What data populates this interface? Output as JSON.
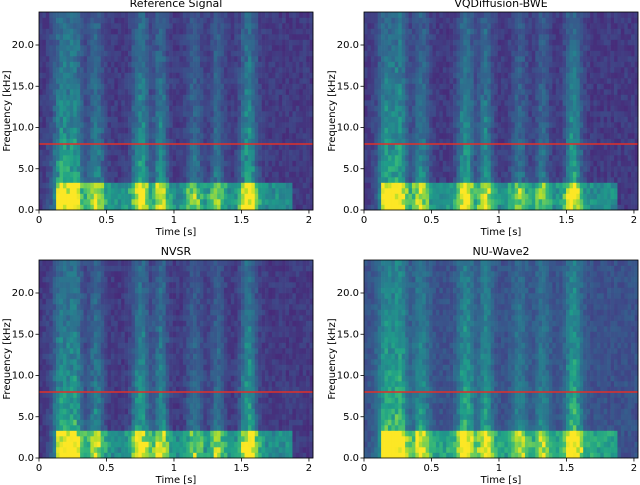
{
  "chart_data": [
    {
      "type": "spectrogram",
      "title": "Reference Signal",
      "xlabel": "Time [s]",
      "ylabel": "Frequency [kHz]",
      "xlim": [
        0,
        2.03
      ],
      "xticks": [
        0,
        0.5,
        1,
        1.5,
        2
      ],
      "ylim": [
        0,
        24
      ],
      "yticks": [
        {
          "value": 0,
          "label": "0.0"
        },
        {
          "value": 5,
          "label": "5.0"
        },
        {
          "value": 10,
          "label": "10.0"
        },
        {
          "value": 15,
          "label": "15.0"
        },
        {
          "value": 20,
          "label": "20.0"
        }
      ],
      "hline": 8,
      "hline_color": "#e0302a"
    },
    {
      "type": "spectrogram",
      "title": "VQDiffusion-BWE",
      "xlabel": "Time [s]",
      "ylabel": "Frequency [kHz]",
      "xlim": [
        0,
        2.03
      ],
      "xticks": [
        0,
        0.5,
        1,
        1.5,
        2
      ],
      "ylim": [
        0,
        24
      ],
      "yticks": [
        {
          "value": 0,
          "label": "0.0"
        },
        {
          "value": 5,
          "label": "5.0"
        },
        {
          "value": 10,
          "label": "10.0"
        },
        {
          "value": 15,
          "label": "15.0"
        },
        {
          "value": 20,
          "label": "20.0"
        }
      ],
      "hline": 8,
      "hline_color": "#e0302a"
    },
    {
      "type": "spectrogram",
      "title": "NVSR",
      "xlabel": "Time [s]",
      "ylabel": "Frequency [kHz]",
      "xlim": [
        0,
        2.03
      ],
      "xticks": [
        0,
        0.5,
        1,
        1.5,
        2
      ],
      "ylim": [
        0,
        24
      ],
      "yticks": [
        {
          "value": 0,
          "label": "0.0"
        },
        {
          "value": 5,
          "label": "5.0"
        },
        {
          "value": 10,
          "label": "10.0"
        },
        {
          "value": 15,
          "label": "15.0"
        },
        {
          "value": 20,
          "label": "20.0"
        }
      ],
      "hline": 8,
      "hline_color": "#e0302a"
    },
    {
      "type": "spectrogram",
      "title": "NU-Wave2",
      "xlabel": "Time [s]",
      "ylabel": "Frequency [kHz]",
      "xlim": [
        0,
        2.03
      ],
      "xticks": [
        0,
        0.5,
        1,
        1.5,
        2
      ],
      "ylim": [
        0,
        24
      ],
      "yticks": [
        {
          "value": 0,
          "label": "0.0"
        },
        {
          "value": 5,
          "label": "5.0"
        },
        {
          "value": 10,
          "label": "10.0"
        },
        {
          "value": 15,
          "label": "15.0"
        },
        {
          "value": 20,
          "label": "20.0"
        }
      ],
      "hline": 8,
      "hline_color": "#e0302a"
    }
  ]
}
